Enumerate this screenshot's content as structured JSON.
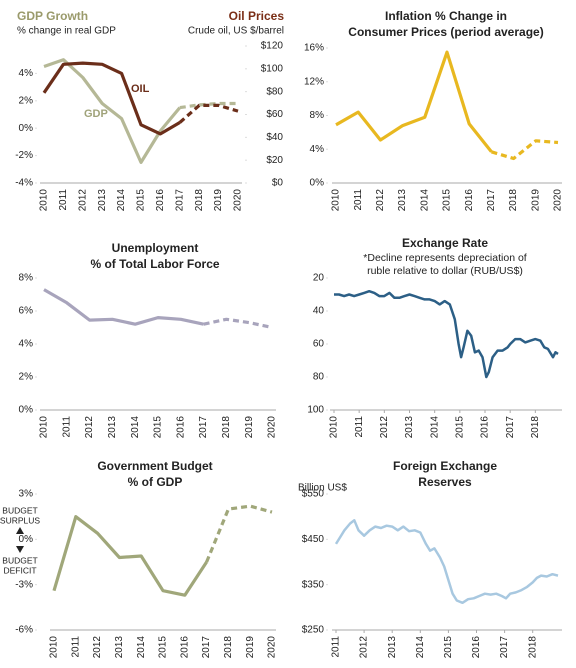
{
  "chart_data": [
    {
      "type": "line",
      "title": "GDP Growth",
      "subtitle": "% change in real GDP",
      "y2_title": "Oil Prices",
      "y2_subtitle": "Crude oil, US $/barrel",
      "categories": [
        "2010",
        "2011",
        "2012",
        "2013",
        "2014",
        "2015",
        "2016",
        "2017",
        "2018",
        "2019",
        "2020"
      ],
      "series": [
        {
          "name": "GDP",
          "color": "#b5b896",
          "dashed_from": "2017",
          "values": [
            4.5,
            5.0,
            3.7,
            1.8,
            0.7,
            -2.5,
            -0.2,
            1.5,
            1.7,
            1.8,
            1.8
          ]
        },
        {
          "name": "OIL",
          "color": "#6b2e1a",
          "axis": "y2",
          "dashed_from": "2017",
          "values": [
            79,
            104,
            105,
            104,
            96,
            51,
            43,
            53,
            68,
            68,
            63
          ]
        }
      ],
      "ylim": [
        -4,
        6
      ],
      "yticks": [
        {
          "value": -4,
          "label": "-4%"
        },
        {
          "value": -2,
          "label": "-2%"
        },
        {
          "value": 0,
          "label": "0%"
        },
        {
          "value": 2,
          "label": "2%"
        },
        {
          "value": 4,
          "label": "4%"
        }
      ],
      "y2lim": [
        0,
        120
      ],
      "y2ticks": [
        {
          "value": 0,
          "label": "$0"
        },
        {
          "value": 20,
          "label": "$20"
        },
        {
          "value": 40,
          "label": "$40"
        },
        {
          "value": 60,
          "label": "$60"
        },
        {
          "value": 80,
          "label": "$80"
        },
        {
          "value": 100,
          "label": "$100"
        },
        {
          "value": 120,
          "label": "$120"
        }
      ]
    },
    {
      "type": "line",
      "title": "Inflation % Change in",
      "subtitle": "Consumer Prices (period average)",
      "categories": [
        "2010",
        "2011",
        "2012",
        "2013",
        "2014",
        "2015",
        "2016",
        "2017",
        "2018",
        "2019",
        "2020"
      ],
      "series": [
        {
          "name": "Inflation",
          "color": "#e8b820",
          "dashed_from": "2017",
          "values": [
            6.9,
            8.4,
            5.1,
            6.8,
            7.8,
            15.5,
            7.0,
            3.7,
            2.9,
            5.0,
            4.8
          ]
        }
      ],
      "ylim": [
        0,
        16
      ],
      "yticks": [
        {
          "value": 0,
          "label": "0%"
        },
        {
          "value": 4,
          "label": "4%"
        },
        {
          "value": 8,
          "label": "8%"
        },
        {
          "value": 12,
          "label": "12%"
        },
        {
          "value": 16,
          "label": "16%"
        }
      ]
    },
    {
      "type": "line",
      "title": "Unemployment",
      "subtitle": "% of Total Labor Force",
      "categories": [
        "2010",
        "2011",
        "2012",
        "2013",
        "2014",
        "2015",
        "2016",
        "2017",
        "2018",
        "2019",
        "2020"
      ],
      "series": [
        {
          "name": "Unemployment",
          "color": "#a8a4bc",
          "dashed_from": "2017",
          "values": [
            7.3,
            6.5,
            5.45,
            5.5,
            5.2,
            5.6,
            5.5,
            5.2,
            5.5,
            5.3,
            5.0
          ]
        }
      ],
      "ylim": [
        0,
        8
      ],
      "yticks": [
        {
          "value": 0,
          "label": "0%"
        },
        {
          "value": 2,
          "label": "2%"
        },
        {
          "value": 4,
          "label": "4%"
        },
        {
          "value": 6,
          "label": "6%"
        },
        {
          "value": 8,
          "label": "8%"
        }
      ]
    },
    {
      "type": "line",
      "title": "Exchange Rate",
      "note": [
        "*Decline represents depreciation of",
        "ruble relative to dollar (RUB/US$)"
      ],
      "x": [
        2010.0,
        2010.2,
        2010.4,
        2010.6,
        2010.8,
        2011.0,
        2011.2,
        2011.4,
        2011.6,
        2011.8,
        2012.0,
        2012.2,
        2012.4,
        2012.6,
        2012.8,
        2013.0,
        2013.2,
        2013.4,
        2013.6,
        2013.8,
        2014.0,
        2014.2,
        2014.4,
        2014.6,
        2014.8,
        2014.95,
        2015.05,
        2015.15,
        2015.3,
        2015.45,
        2015.6,
        2015.75,
        2015.9,
        2016.05,
        2016.15,
        2016.3,
        2016.5,
        2016.7,
        2016.9,
        2017.0,
        2017.2,
        2017.4,
        2017.6,
        2017.8,
        2018.0,
        2018.2,
        2018.35,
        2018.5,
        2018.7,
        2018.8,
        2018.9
      ],
      "series": [
        {
          "name": "RUB/US$",
          "color": "#2c5f86",
          "values": [
            30,
            30,
            31,
            30,
            31,
            30,
            29,
            28,
            29,
            31,
            31,
            29,
            32,
            32,
            31,
            30,
            31,
            32,
            33,
            33,
            34,
            36,
            34,
            36,
            45,
            60,
            68,
            62,
            52,
            55,
            65,
            64,
            68,
            80,
            77,
            68,
            64,
            64,
            62,
            60,
            57,
            57,
            59,
            58,
            57,
            58,
            62,
            63,
            68,
            65,
            66
          ]
        }
      ],
      "xlim": [
        2010,
        2018.9
      ],
      "xticks": [
        2010,
        2011,
        2012,
        2013,
        2014,
        2015,
        2016,
        2017,
        2018
      ],
      "ylim": [
        100,
        20
      ],
      "yticks": [
        20,
        40,
        60,
        80,
        100
      ]
    },
    {
      "type": "line",
      "title": "Government Budget",
      "subtitle": "% of GDP",
      "surplus_label": [
        "BUDGET",
        "SURPLUS"
      ],
      "deficit_label": [
        "BUDGET",
        "DEFICIT"
      ],
      "categories": [
        "2010",
        "2011",
        "2012",
        "2013",
        "2014",
        "2015",
        "2016",
        "2017",
        "2018",
        "2019",
        "2020"
      ],
      "series": [
        {
          "name": "Budget",
          "color": "#a0a77a",
          "dashed_from": "2017",
          "values": [
            -3.4,
            1.5,
            0.4,
            -1.2,
            -1.1,
            -3.4,
            -3.7,
            -1.5,
            2.0,
            2.2,
            1.8
          ]
        }
      ],
      "ylim": [
        -6,
        3
      ],
      "yticks": [
        {
          "value": -6,
          "label": "-6%"
        },
        {
          "value": -3,
          "label": "-3%"
        },
        {
          "value": 0,
          "label": "0%"
        },
        {
          "value": 3,
          "label": "3%"
        }
      ]
    },
    {
      "type": "line",
      "title": "Foreign Exchange",
      "subtitle": "Reserves",
      "y_label": "Billion US$",
      "x": [
        2011.0,
        2011.15,
        2011.3,
        2011.5,
        2011.65,
        2011.8,
        2012.0,
        2012.2,
        2012.4,
        2012.6,
        2012.8,
        2013.0,
        2013.2,
        2013.4,
        2013.6,
        2013.8,
        2014.0,
        2014.2,
        2014.35,
        2014.5,
        2014.7,
        2014.85,
        2015.0,
        2015.15,
        2015.3,
        2015.5,
        2015.7,
        2015.9,
        2016.1,
        2016.3,
        2016.5,
        2016.7,
        2016.9,
        2017.05,
        2017.2,
        2017.4,
        2017.6,
        2017.8,
        2018.0,
        2018.15,
        2018.3,
        2018.5,
        2018.7,
        2018.9
      ],
      "series": [
        {
          "name": "Reserves",
          "color": "#a8c8e0",
          "values": [
            440,
            455,
            470,
            485,
            492,
            470,
            458,
            470,
            478,
            475,
            480,
            478,
            470,
            478,
            468,
            470,
            465,
            440,
            425,
            430,
            410,
            390,
            360,
            330,
            315,
            310,
            318,
            320,
            325,
            330,
            328,
            330,
            325,
            320,
            330,
            333,
            338,
            345,
            355,
            365,
            370,
            368,
            373,
            370
          ]
        }
      ],
      "xlim": [
        2011,
        2018.9
      ],
      "xticks": [
        2011,
        2012,
        2013,
        2014,
        2015,
        2016,
        2017,
        2018
      ],
      "ylim": [
        250,
        550
      ],
      "yticks": [
        {
          "value": 250,
          "label": "$250"
        },
        {
          "value": 350,
          "label": "$350"
        },
        {
          "value": 450,
          "label": "$450"
        },
        {
          "value": 550,
          "label": "$550"
        }
      ]
    }
  ]
}
